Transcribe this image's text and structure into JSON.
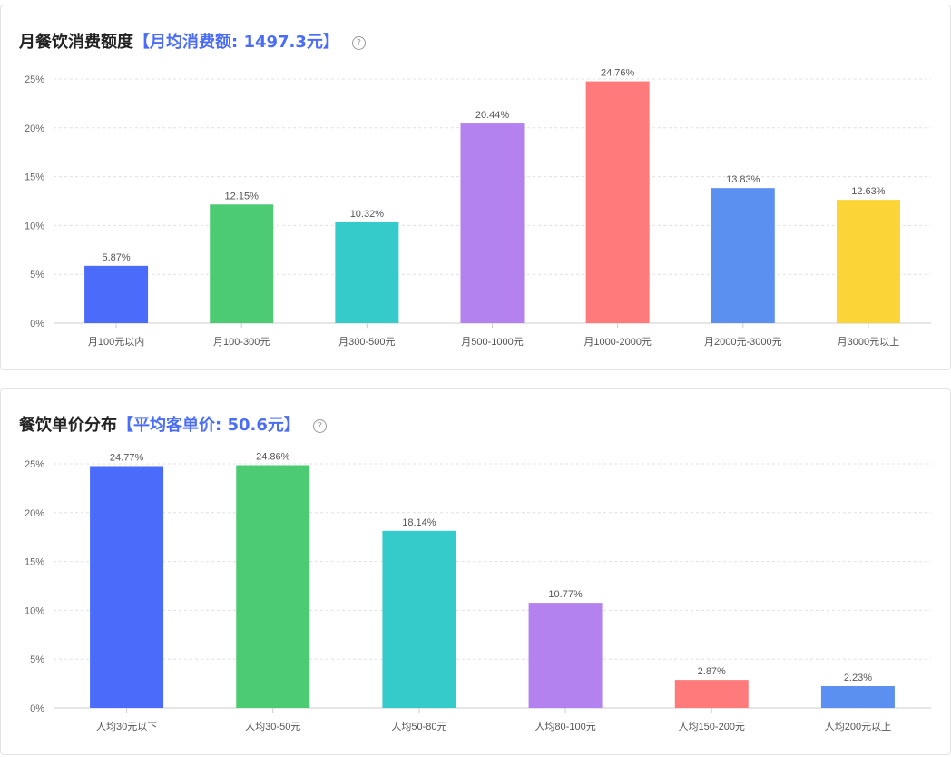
{
  "chart_data": [
    {
      "type": "bar",
      "title": "月餐饮消费额度",
      "highlight": "【月均消费额: 1497.3元】",
      "categories": [
        "月100元以内",
        "月100-300元",
        "月300-500元",
        "月500-1000元",
        "月1000-2000元",
        "月2000元-3000元",
        "月3000元以上"
      ],
      "values": [
        5.87,
        12.15,
        10.32,
        20.44,
        24.76,
        13.83,
        12.63
      ],
      "labels": [
        "5.87%",
        "12.15%",
        "10.32%",
        "20.44%",
        "24.76%",
        "13.83%",
        "12.63%"
      ],
      "colors": [
        "#4b6bfb",
        "#4ccb73",
        "#36cbcb",
        "#b482ee",
        "#ff7b7b",
        "#5b8ff0",
        "#fbd437"
      ],
      "yticks": [
        "0%",
        "5%",
        "10%",
        "15%",
        "20%",
        "25%"
      ],
      "ylim": [
        0,
        25
      ],
      "grid": true
    },
    {
      "type": "bar",
      "title": "餐饮单价分布",
      "highlight": "【平均客单价: 50.6元】",
      "categories": [
        "人均30元以下",
        "人均30-50元",
        "人均50-80元",
        "人均80-100元",
        "人均150-200元",
        "人均200元以上"
      ],
      "values": [
        24.77,
        24.86,
        18.14,
        10.77,
        2.87,
        2.23
      ],
      "labels": [
        "24.77%",
        "24.86%",
        "18.14%",
        "10.77%",
        "2.87%",
        "2.23%"
      ],
      "colors": [
        "#4b6bfb",
        "#4ccb73",
        "#36cbcb",
        "#b482ee",
        "#ff7b7b",
        "#5b8ff0"
      ],
      "yticks": [
        "0%",
        "5%",
        "10%",
        "15%",
        "20%",
        "25%"
      ],
      "ylim": [
        0,
        25
      ],
      "grid": true
    }
  ],
  "help_glyph": "?"
}
